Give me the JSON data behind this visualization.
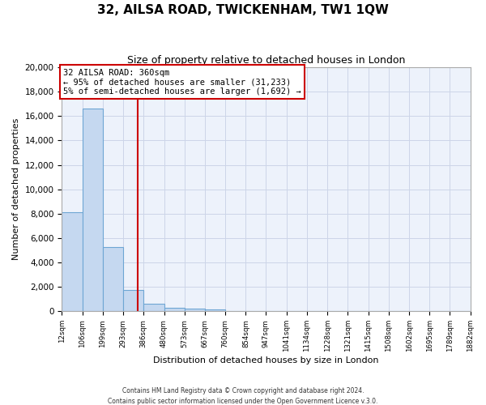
{
  "title": "32, AILSA ROAD, TWICKENHAM, TW1 1QW",
  "subtitle": "Size of property relative to detached houses in London",
  "xlabel": "Distribution of detached houses by size in London",
  "ylabel": "Number of detached properties",
  "bar_values": [
    8100,
    16600,
    5300,
    1750,
    650,
    320,
    200,
    130,
    0,
    0,
    0,
    0,
    0,
    0,
    0,
    0,
    0,
    0,
    0,
    0
  ],
  "bin_edges": [
    12,
    106,
    199,
    293,
    386,
    480,
    573,
    667,
    760,
    854,
    947,
    1041,
    1134,
    1228,
    1321,
    1415,
    1508,
    1602,
    1695,
    1789,
    1882
  ],
  "tick_labels": [
    "12sqm",
    "106sqm",
    "199sqm",
    "293sqm",
    "386sqm",
    "480sqm",
    "573sqm",
    "667sqm",
    "760sqm",
    "854sqm",
    "947sqm",
    "1041sqm",
    "1134sqm",
    "1228sqm",
    "1321sqm",
    "1415sqm",
    "1508sqm",
    "1602sqm",
    "1695sqm",
    "1789sqm",
    "1882sqm"
  ],
  "property_size": 360,
  "property_label": "32 AILSA ROAD: 360sqm",
  "pct_smaller": 95,
  "count_smaller": 31233,
  "pct_larger": 5,
  "count_larger": 1692,
  "bar_color": "#c5d8f0",
  "bar_edge_color": "#6ea6d4",
  "vline_color": "#cc0000",
  "annotation_box_color": "#cc0000",
  "grid_color": "#ccd5e8",
  "background_color": "#edf2fb",
  "ylim": [
    0,
    20000
  ],
  "yticks": [
    0,
    2000,
    4000,
    6000,
    8000,
    10000,
    12000,
    14000,
    16000,
    18000,
    20000
  ],
  "footer_line1": "Contains HM Land Registry data © Crown copyright and database right 2024.",
  "footer_line2": "Contains public sector information licensed under the Open Government Licence v.3.0."
}
